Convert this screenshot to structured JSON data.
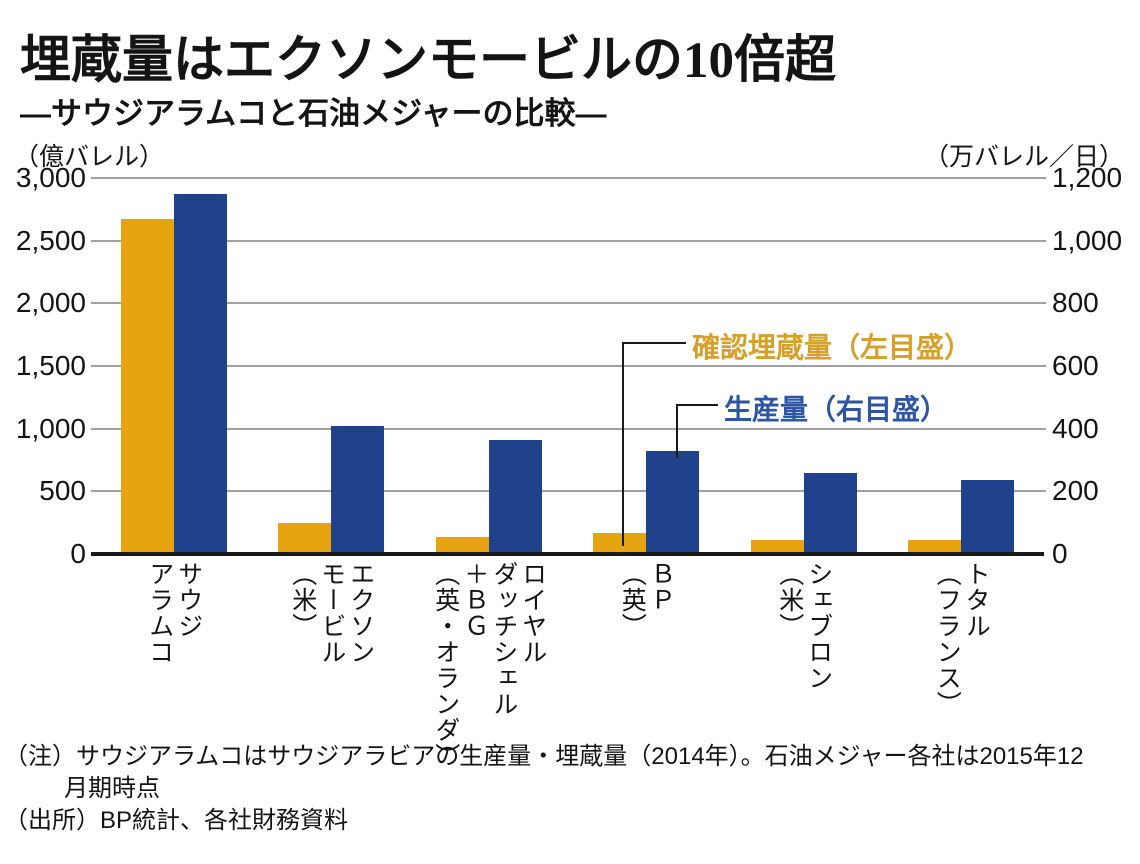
{
  "header": {
    "title": "埋蔵量はエクソンモービルの10倍超",
    "subtitle": "―サウジアラムコと石油メジャーの比較―"
  },
  "legend": {
    "reserves_label": "確認埋蔵量（左目盛）",
    "production_label": "生産量（右目盛）"
  },
  "notes": {
    "line1": "（注）サウジアラムコはサウジアラビアの生産量・埋蔵量（2014年）。石油メジャー各社は2015年12",
    "line2": "月期時点",
    "source": "（出所）BP統計、各社財務資料"
  },
  "colors": {
    "reserves_bar": "#E5A410",
    "production_bar": "#20428C",
    "reserves_text": "#D7A02B",
    "production_text": "#2E55A3",
    "gridline": "#A0A0A0",
    "axis": "#1A1A1A"
  },
  "chart_data": {
    "type": "bar",
    "title": "埋蔵量はエクソンモービルの10倍超",
    "subtitle": "サウジアラムコと石油メジャーの比較",
    "grid": true,
    "legend_position": "callout-center-right",
    "categories": [
      {
        "name": "サウジアラムコ",
        "label_lines": "サウジ\nアラムコ"
      },
      {
        "name": "エクソンモービル（米）",
        "label_lines": "エクソン\nモービル\n（米）"
      },
      {
        "name": "ロイヤルダッチシェル＋BG（英・オランダ）",
        "label_lines": "ロイヤル\nダッチシェル\n＋ＢＧ\n（英・オランダ）"
      },
      {
        "name": "BP（英）",
        "label_lines": "ＢＰ\n（英）"
      },
      {
        "name": "シェブロン（米）",
        "label_lines": "シェブロン\n（米）"
      },
      {
        "name": "トタル（フランス）",
        "label_lines": "トタル\n（フランス）"
      }
    ],
    "series": [
      {
        "name": "確認埋蔵量",
        "axis": "left",
        "unit": "億バレル",
        "values": [
          2670,
          250,
          140,
          170,
          110,
          115
        ]
      },
      {
        "name": "生産量",
        "axis": "right",
        "unit": "万バレル／日",
        "values": [
          1150,
          410,
          365,
          330,
          260,
          235
        ]
      }
    ],
    "left_axis": {
      "unit_label": "（億バレル）",
      "range": [
        0,
        3000
      ],
      "ticks": [
        "3,000",
        "2,500",
        "2,000",
        "1,500",
        "1,000",
        "500",
        "0"
      ]
    },
    "right_axis": {
      "unit_label": "（万バレル／日）",
      "range": [
        0,
        1200
      ],
      "ticks": [
        "1,200",
        "1,000",
        "800",
        "600",
        "400",
        "200",
        "0"
      ]
    }
  }
}
